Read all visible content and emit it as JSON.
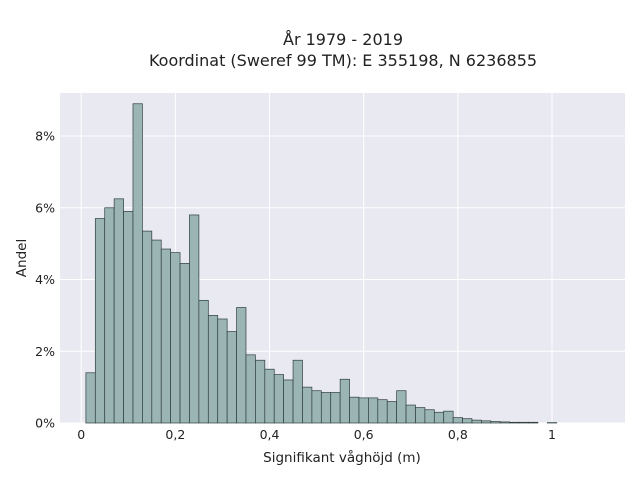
{
  "chart_data": {
    "type": "bar",
    "title": "År 1979 - 2019",
    "subtitle": "Koordinat (Sweref 99 TM): E 355198, N 6236855",
    "xlabel": "Signifikant våghöjd (m)",
    "ylabel": "Andel",
    "xlim": [
      -0.045,
      1.155
    ],
    "ylim": [
      0,
      9.2
    ],
    "x_ticks": [
      {
        "value": 0,
        "label": "0"
      },
      {
        "value": 0.2,
        "label": "0,2"
      },
      {
        "value": 0.4,
        "label": "0,4"
      },
      {
        "value": 0.6,
        "label": "0,6"
      },
      {
        "value": 0.8,
        "label": "0,8"
      },
      {
        "value": 1,
        "label": "1"
      }
    ],
    "y_ticks": [
      {
        "value": 0,
        "label": "0%"
      },
      {
        "value": 2,
        "label": "2%"
      },
      {
        "value": 4,
        "label": "4%"
      },
      {
        "value": 6,
        "label": "6%"
      },
      {
        "value": 8,
        "label": "8%"
      }
    ],
    "bin_start": 0.01,
    "bin_width": 0.02,
    "values": [
      1.4,
      5.7,
      6.0,
      6.25,
      5.9,
      8.9,
      5.35,
      5.1,
      4.85,
      4.75,
      4.45,
      5.8,
      3.42,
      3.0,
      2.9,
      2.55,
      3.22,
      1.9,
      1.75,
      1.5,
      1.35,
      1.2,
      1.75,
      1.0,
      0.9,
      0.85,
      0.85,
      1.22,
      0.72,
      0.7,
      0.7,
      0.65,
      0.6,
      0.9,
      0.5,
      0.43,
      0.37,
      0.3,
      0.33,
      0.15,
      0.12,
      0.08,
      0.06,
      0.04,
      0.03,
      0.02,
      0.02,
      0.02,
      0.0,
      0.01
    ],
    "grid": true,
    "colors": {
      "background": "#e9e9f2",
      "bar_fill": "#9bb5b5",
      "bar_stroke": "#2e3e3e",
      "grid": "#ffffff"
    }
  }
}
